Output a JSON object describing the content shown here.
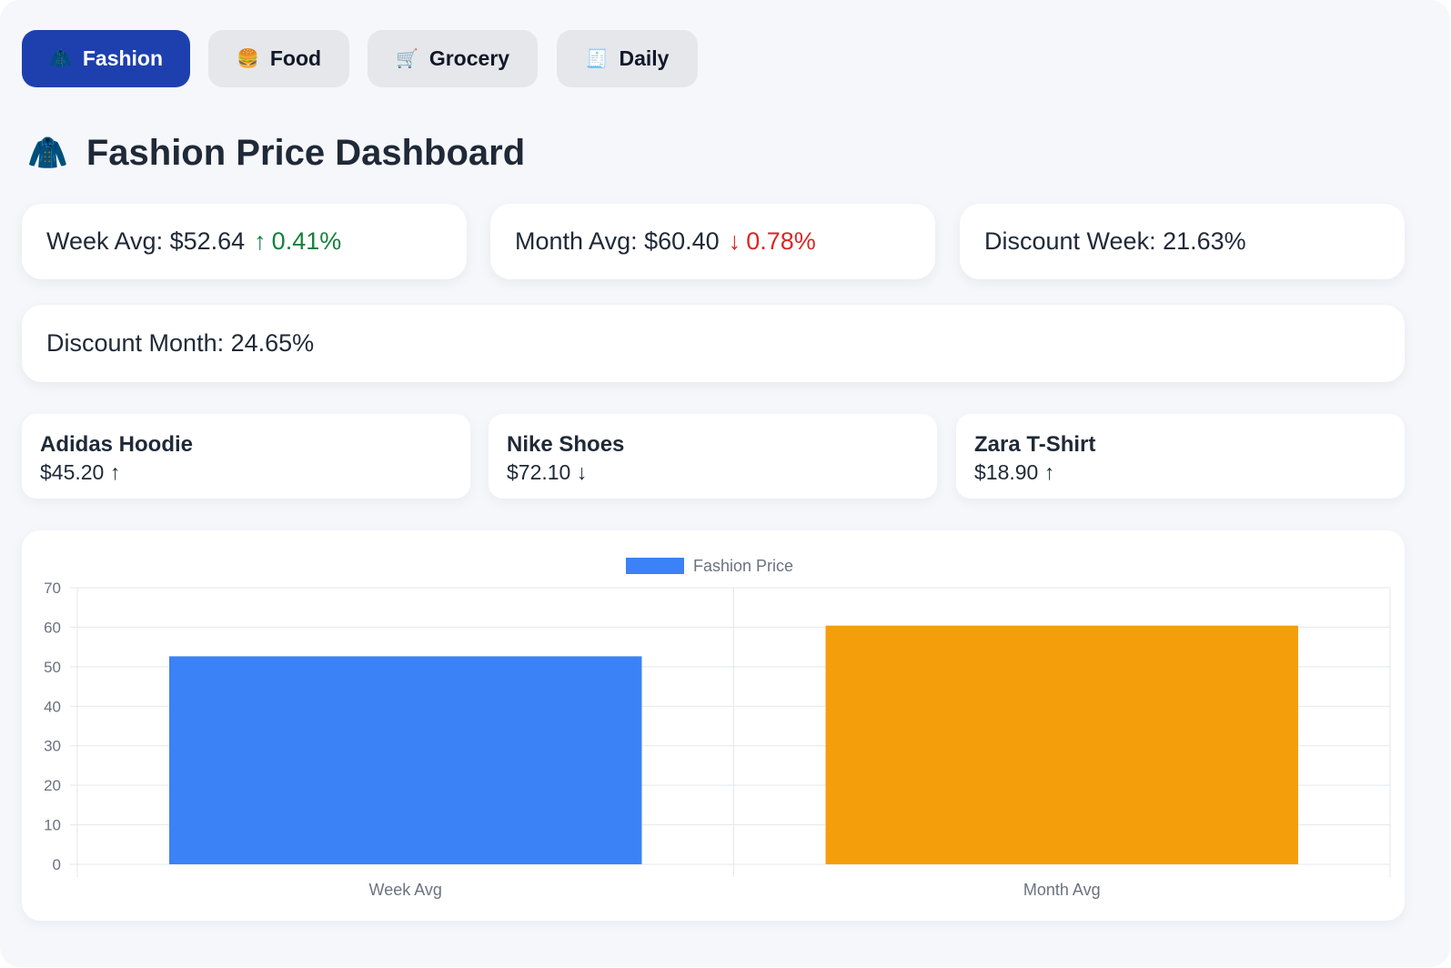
{
  "tabs": [
    {
      "label": "Fashion",
      "icon": "🧥",
      "icon_name": "coat-icon",
      "active": true
    },
    {
      "label": "Food",
      "icon": "🍔",
      "icon_name": "burger-icon",
      "active": false
    },
    {
      "label": "Grocery",
      "icon": "🛒",
      "icon_name": "cart-icon",
      "active": false
    },
    {
      "label": "Daily",
      "icon": "🧾",
      "icon_name": "receipt-icon",
      "active": false
    }
  ],
  "page": {
    "title": "Fashion Price Dashboard",
    "title_icon": "🧥"
  },
  "stats": {
    "week_avg": {
      "label": "Week Avg: $52.64",
      "arrow": "↑",
      "change": "0.41%",
      "direction": "up"
    },
    "month_avg": {
      "label": "Month Avg: $60.40",
      "arrow": "↓",
      "change": "0.78%",
      "direction": "down"
    },
    "discount_week": {
      "label": "Discount Week: 21.63%"
    },
    "discount_month": {
      "label": "Discount Month: 24.65%"
    }
  },
  "products": [
    {
      "name": "Adidas Hoodie",
      "price": "$45.20 ↑"
    },
    {
      "name": "Nike Shoes",
      "price": "$72.10 ↓"
    },
    {
      "name": "Zara T-Shirt",
      "price": "$18.90 ↑"
    }
  ],
  "colors": {
    "accent": "#1e40af",
    "up": "#15803d",
    "down": "#dc2626"
  },
  "chart_data": {
    "type": "bar",
    "categories": [
      "Week Avg",
      "Month Avg"
    ],
    "series": [
      {
        "name": "Fashion Price",
        "values": [
          52.64,
          60.4
        ],
        "colors": [
          "#3b82f6",
          "#f59e0b"
        ]
      }
    ],
    "legend_color": "#3b82f6",
    "ylim": [
      0,
      70
    ],
    "yticks": [
      0,
      10,
      20,
      30,
      40,
      50,
      60,
      70
    ],
    "grid": true,
    "legend_position": "top-center"
  }
}
